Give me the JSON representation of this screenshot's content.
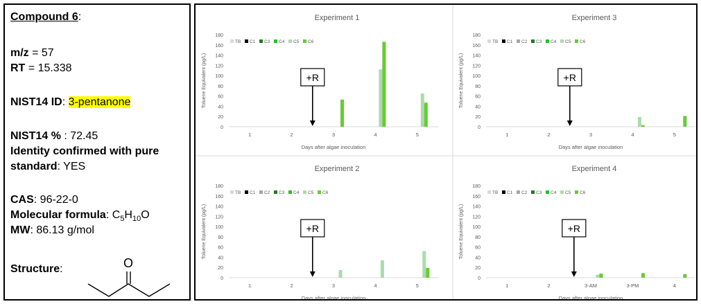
{
  "compound": {
    "heading": "Compound 6",
    "heading_colon": ":",
    "mz_label": "m/z",
    "mz_value": " = 57",
    "rt_label": "RT",
    "rt_value": " = 15.338",
    "nist_id_label": "NIST14 ID",
    "nist_id_sep": ": ",
    "nist_id_value": "3-pentanone",
    "nist_pct_label": "NIST14 %",
    "nist_pct_value": " : 72.45",
    "identity_line1": "Identity confirmed with pure",
    "identity_line2": "standard",
    "identity_value": ": YES",
    "cas_label": "CAS",
    "cas_value": ": 96-22-0",
    "formula_label": "Molecular formula",
    "formula_sep": ":  C",
    "formula_sub1": "5",
    "formula_h": "H",
    "formula_sub2": "10",
    "formula_o": "O",
    "mw_label": "MW",
    "mw_value": ": 86.13 g/mol",
    "structure_label": "Structure",
    "structure_colon": ":",
    "structure_atom": "O"
  },
  "colors": {
    "TB": "#d9d9d9",
    "C1": "#000000",
    "C2": "#a6a6a6",
    "C3": "#1e7b1e",
    "C4": "#21c321",
    "C5": "#a9dca9",
    "C6": "#66cc33"
  },
  "chart_data": [
    {
      "type": "bar",
      "title": "Experiment 1",
      "xlabel": "Days after algae inoculation",
      "ylabel": "Toluene Equivalent (pg/L)",
      "ylim": [
        0,
        180
      ],
      "yticks": [
        0,
        20,
        40,
        60,
        80,
        100,
        120,
        140,
        160,
        180
      ],
      "categories": [
        "1",
        "2",
        "3",
        "4",
        "5"
      ],
      "legend": [
        "TB",
        "C1",
        "C3",
        "C4",
        "C5",
        "C6"
      ],
      "annotation": "+R",
      "annotation_x": 2.5,
      "series": [
        {
          "name": "TB",
          "values": [
            0,
            0,
            0,
            0,
            0
          ]
        },
        {
          "name": "C1",
          "values": [
            0,
            0,
            0,
            0,
            0
          ]
        },
        {
          "name": "C3",
          "values": [
            0,
            0,
            0,
            0,
            0
          ]
        },
        {
          "name": "C4",
          "values": [
            0,
            0,
            0,
            0,
            0
          ]
        },
        {
          "name": "C5",
          "values": [
            0,
            0,
            0,
            112,
            65
          ]
        },
        {
          "name": "C6",
          "values": [
            0,
            0,
            53,
            166,
            47
          ]
        }
      ]
    },
    {
      "type": "bar",
      "title": "Experiment 3",
      "xlabel": "Days after algae inoculation",
      "ylabel": "Toluene Equivalent (pg/L)",
      "ylim": [
        0,
        180
      ],
      "yticks": [
        0,
        20,
        40,
        60,
        80,
        100,
        120,
        140,
        160,
        180
      ],
      "categories": [
        "1",
        "2",
        "3",
        "4",
        "5"
      ],
      "legend": [
        "TB",
        "C1",
        "C2",
        "C3",
        "C4",
        "C5",
        "C6"
      ],
      "annotation": "+R",
      "annotation_x": 2.5,
      "series": [
        {
          "name": "TB",
          "values": [
            0,
            0,
            0,
            0,
            0
          ]
        },
        {
          "name": "C1",
          "values": [
            0,
            0,
            0,
            0,
            0
          ]
        },
        {
          "name": "C2",
          "values": [
            0,
            0,
            0,
            0,
            0
          ]
        },
        {
          "name": "C3",
          "values": [
            0,
            0,
            0,
            0,
            0
          ]
        },
        {
          "name": "C4",
          "values": [
            0,
            0,
            0,
            0,
            0
          ]
        },
        {
          "name": "C5",
          "values": [
            0,
            0,
            0,
            19,
            0
          ]
        },
        {
          "name": "C6",
          "values": [
            0,
            0,
            0,
            3,
            21
          ]
        }
      ]
    },
    {
      "type": "bar",
      "title": "Experiment 2",
      "xlabel": "Days after algae inoculation",
      "ylabel": "Toluene Equivalent (pg/L)",
      "ylim": [
        0,
        180
      ],
      "yticks": [
        0,
        20,
        40,
        60,
        80,
        100,
        120,
        140,
        160,
        180
      ],
      "categories": [
        "1",
        "2",
        "3",
        "4",
        "5"
      ],
      "legend": [
        "TB",
        "C1",
        "C2",
        "C3",
        "C4",
        "C5",
        "C6"
      ],
      "annotation": "+R",
      "annotation_x": 2.5,
      "series": [
        {
          "name": "TB",
          "values": [
            0,
            0,
            0,
            0,
            0
          ]
        },
        {
          "name": "C1",
          "values": [
            0,
            0,
            0,
            0,
            0
          ]
        },
        {
          "name": "C2",
          "values": [
            0,
            0,
            0,
            0,
            0
          ]
        },
        {
          "name": "C3",
          "values": [
            0,
            0,
            0,
            0,
            0
          ]
        },
        {
          "name": "C4",
          "values": [
            0,
            0,
            0,
            0,
            0
          ]
        },
        {
          "name": "C5",
          "values": [
            0,
            0,
            15,
            34,
            52
          ]
        },
        {
          "name": "C6",
          "values": [
            0,
            0,
            0,
            0,
            19
          ]
        }
      ]
    },
    {
      "type": "bar",
      "title": "Experiment 4",
      "xlabel": "Days after algae inoculation",
      "ylabel": "Toluene Equivalent (pg/L)",
      "ylim": [
        0,
        180
      ],
      "yticks": [
        0,
        20,
        40,
        60,
        80,
        100,
        120,
        140,
        160,
        180
      ],
      "categories": [
        "1",
        "2",
        "3-AM",
        "3-PM",
        "4"
      ],
      "legend": [
        "TB",
        "C1",
        "C2",
        "C3",
        "C4",
        "C5",
        "C6"
      ],
      "annotation": "+R",
      "annotation_x": 2.6,
      "series": [
        {
          "name": "TB",
          "values": [
            0,
            0,
            0,
            0,
            0
          ]
        },
        {
          "name": "C1",
          "values": [
            0,
            0,
            0,
            0,
            0
          ]
        },
        {
          "name": "C2",
          "values": [
            0,
            0,
            0,
            0,
            0
          ]
        },
        {
          "name": "C3",
          "values": [
            0,
            0,
            0,
            0,
            0
          ]
        },
        {
          "name": "C4",
          "values": [
            0,
            0,
            0,
            0,
            0
          ]
        },
        {
          "name": "C5",
          "values": [
            0,
            0,
            6,
            0,
            0
          ]
        },
        {
          "name": "C6",
          "values": [
            0,
            0,
            8,
            9,
            7
          ]
        }
      ]
    }
  ]
}
